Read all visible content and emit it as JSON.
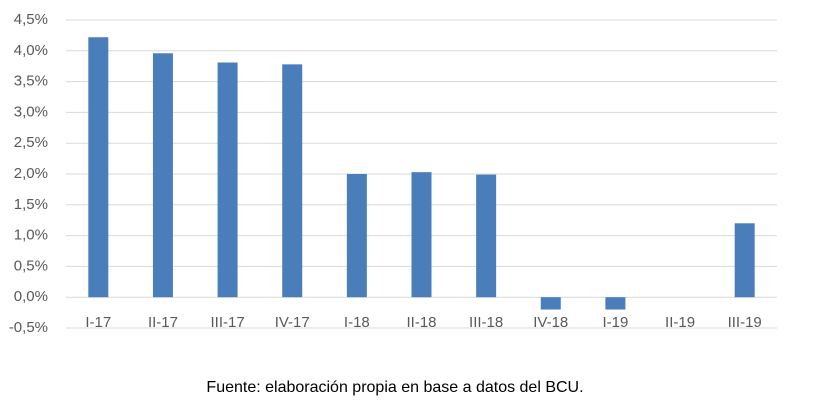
{
  "chart_data": {
    "type": "bar",
    "categories": [
      "I-17",
      "II-17",
      "III-17",
      "IV-17",
      "I-18",
      "II-18",
      "III-18",
      "IV-18",
      "I-19",
      "II-19",
      "III-19"
    ],
    "values": [
      4.22,
      3.96,
      3.81,
      3.78,
      2.0,
      2.03,
      1.99,
      -0.2,
      -0.2,
      0,
      1.2
    ],
    "color": "#4a7ebb",
    "ylim": [
      -0.5,
      4.5
    ],
    "yticks": [
      {
        "value": 4.5,
        "label": "4,5%"
      },
      {
        "value": 4,
        "label": "4,0%"
      },
      {
        "value": 3.5,
        "label": "3,5%"
      },
      {
        "value": 3,
        "label": "3,0%"
      },
      {
        "value": 2.5,
        "label": "2,5%"
      },
      {
        "value": 2,
        "label": "2,0%"
      },
      {
        "value": 1.5,
        "label": "1,5%"
      },
      {
        "value": 1,
        "label": "1,0%"
      },
      {
        "value": 0.5,
        "label": "0,5%"
      },
      {
        "value": 0,
        "label": "0,0%"
      },
      {
        "value": -0.5,
        "label": "-0,5%"
      }
    ],
    "grid": true,
    "source": "Fuente: elaboración propia en base a datos del BCU."
  }
}
